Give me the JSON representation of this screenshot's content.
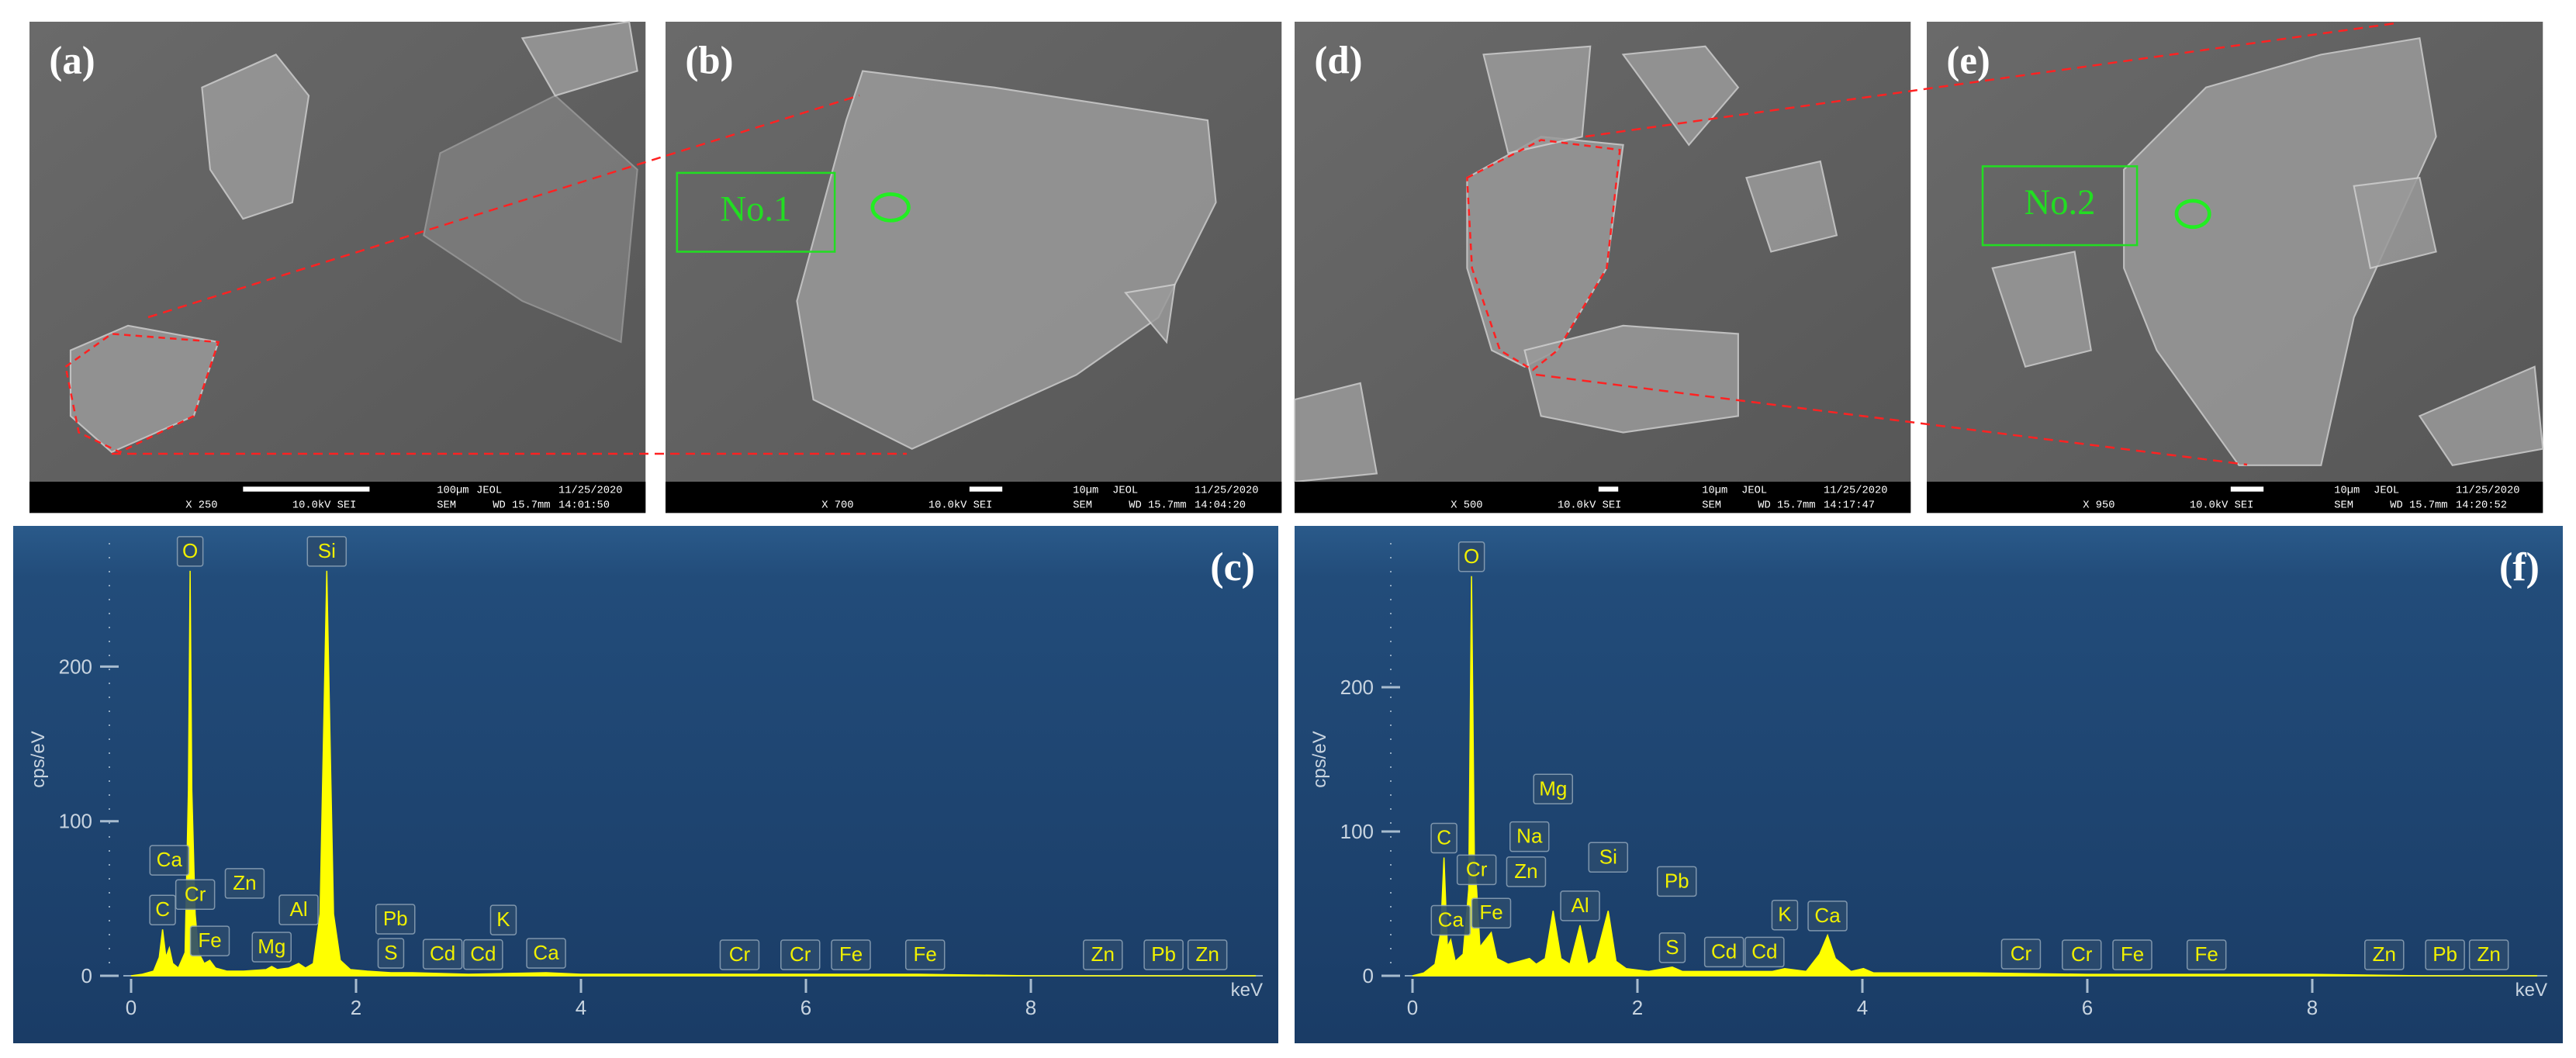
{
  "panels": [
    {
      "label": "(a)",
      "magnification": "X 250",
      "voltage": "10.0kV SEI",
      "scale": "100µm",
      "maker": "JEOL",
      "date": "11/25/2020",
      "mode": "SEM",
      "wd": "WD 15.7mm",
      "time": "14:01:50"
    },
    {
      "label": "(b)",
      "box": "No.1",
      "magnification": "X 700",
      "voltage": "10.0kV SEI",
      "scale": "10µm",
      "maker": "JEOL",
      "date": "11/25/2020",
      "mode": "SEM",
      "wd": "WD 15.7mm",
      "time": "14:04:20"
    },
    {
      "label": "(d)",
      "magnification": "X 500",
      "voltage": "10.0kV SEI",
      "scale": "10µm",
      "maker": "JEOL",
      "date": "11/25/2020",
      "mode": "SEM",
      "wd": "WD 15.7mm",
      "time": "14:17:47"
    },
    {
      "label": "(e)",
      "box": "No.2",
      "magnification": "X 950",
      "voltage": "10.0kV SEI",
      "scale": "10µm",
      "maker": "JEOL",
      "date": "11/25/2020",
      "mode": "SEM",
      "wd": "WD 15.7mm",
      "time": "14:20:52"
    }
  ],
  "chart_data": [
    {
      "type": "area",
      "title": "(c)",
      "x_label": "keV",
      "y_label": "cps/eV",
      "color": "#ffff00",
      "xlim": [
        0,
        10
      ],
      "ylim": [
        0,
        280
      ],
      "xticks": [
        0,
        2,
        4,
        6,
        8
      ],
      "yticks": [
        0,
        100,
        200
      ],
      "x": [
        0,
        0.1,
        0.2,
        0.25,
        0.28,
        0.31,
        0.34,
        0.37,
        0.42,
        0.48,
        0.51,
        0.525,
        0.54,
        0.57,
        0.6,
        0.65,
        0.7,
        0.75,
        0.85,
        1.0,
        1.2,
        1.25,
        1.3,
        1.4,
        1.49,
        1.55,
        1.62,
        1.68,
        1.71,
        1.74,
        1.77,
        1.8,
        1.86,
        1.95,
        2.1,
        2.31,
        2.5,
        3.0,
        3.69,
        4.0,
        5.0,
        6.0,
        7.0,
        8.0,
        9.0,
        10.0
      ],
      "values": [
        0,
        1,
        3,
        12,
        30,
        12,
        18,
        8,
        5,
        15,
        120,
        262,
        120,
        40,
        15,
        8,
        10,
        5,
        3,
        3,
        4,
        6,
        4,
        5,
        8,
        5,
        8,
        40,
        150,
        262,
        150,
        40,
        10,
        4,
        3,
        2,
        2,
        1,
        2,
        1,
        1,
        1,
        1,
        0,
        0,
        0
      ],
      "peaks": [
        {
          "label": "O",
          "x": 0.525
        },
        {
          "label": "Si",
          "x": 1.74
        },
        {
          "label": "C",
          "x": 0.28
        },
        {
          "label": "Ca",
          "x": 0.34
        },
        {
          "label": "Cr",
          "x": 0.57
        },
        {
          "label": "Fe",
          "x": 0.7
        },
        {
          "label": "Zn",
          "x": 1.01
        },
        {
          "label": "Mg",
          "x": 1.25
        },
        {
          "label": "Al",
          "x": 1.49
        },
        {
          "label": "S",
          "x": 2.31
        },
        {
          "label": "Pb",
          "x": 2.35
        },
        {
          "label": "Cd",
          "x": 2.77
        },
        {
          "label": "Cd",
          "x": 3.13
        },
        {
          "label": "K",
          "x": 3.31
        },
        {
          "label": "Ca",
          "x": 3.69
        },
        {
          "label": "Cr",
          "x": 5.41
        },
        {
          "label": "Cr",
          "x": 5.95
        },
        {
          "label": "Fe",
          "x": 6.4
        },
        {
          "label": "Fe",
          "x": 7.06
        },
        {
          "label": "Zn",
          "x": 8.64
        },
        {
          "label": "Pb",
          "x": 9.18
        },
        {
          "label": "Zn",
          "x": 9.57
        }
      ]
    },
    {
      "type": "area",
      "title": "(f)",
      "x_label": "keV",
      "y_label": "cps/eV",
      "color": "#ffff00",
      "xlim": [
        0,
        10
      ],
      "ylim": [
        0,
        300
      ],
      "xticks": [
        0,
        2,
        4,
        6,
        8
      ],
      "yticks": [
        0,
        100,
        200
      ],
      "x": [
        0,
        0.1,
        0.2,
        0.25,
        0.28,
        0.31,
        0.34,
        0.38,
        0.45,
        0.5,
        0.525,
        0.55,
        0.57,
        0.6,
        0.65,
        0.7,
        0.75,
        0.85,
        0.95,
        1.04,
        1.1,
        1.18,
        1.25,
        1.32,
        1.4,
        1.49,
        1.56,
        1.63,
        1.74,
        1.81,
        1.9,
        2.1,
        2.31,
        2.4,
        2.8,
        3.2,
        3.31,
        3.5,
        3.62,
        3.69,
        3.76,
        3.9,
        4.01,
        4.1,
        5,
        6,
        7,
        8,
        9,
        10
      ],
      "values": [
        0,
        2,
        8,
        30,
        82,
        20,
        25,
        10,
        15,
        60,
        277,
        80,
        60,
        20,
        25,
        30,
        12,
        8,
        10,
        12,
        8,
        12,
        45,
        12,
        8,
        35,
        8,
        12,
        45,
        10,
        5,
        3,
        6,
        3,
        3,
        3,
        5,
        3,
        15,
        28,
        12,
        3,
        5,
        2,
        2,
        1,
        1,
        1,
        0,
        0
      ],
      "peaks": [
        {
          "label": "O",
          "x": 0.525
        },
        {
          "label": "C",
          "x": 0.28
        },
        {
          "label": "Ca",
          "x": 0.34
        },
        {
          "label": "Cr",
          "x": 0.57
        },
        {
          "label": "Fe",
          "x": 0.7
        },
        {
          "label": "Zn",
          "x": 1.01
        },
        {
          "label": "Na",
          "x": 1.04
        },
        {
          "label": "Mg",
          "x": 1.25
        },
        {
          "label": "Al",
          "x": 1.49
        },
        {
          "label": "Si",
          "x": 1.74
        },
        {
          "label": "S",
          "x": 2.31
        },
        {
          "label": "Pb",
          "x": 2.35
        },
        {
          "label": "Cd",
          "x": 2.77
        },
        {
          "label": "Cd",
          "x": 3.13
        },
        {
          "label": "K",
          "x": 3.31
        },
        {
          "label": "Ca",
          "x": 3.69
        },
        {
          "label": "Cr",
          "x": 5.41
        },
        {
          "label": "Cr",
          "x": 5.95
        },
        {
          "label": "Fe",
          "x": 6.4
        },
        {
          "label": "Fe",
          "x": 7.06
        },
        {
          "label": "Zn",
          "x": 8.64
        },
        {
          "label": "Pb",
          "x": 9.18
        },
        {
          "label": "Zn",
          "x": 9.57
        }
      ]
    }
  ]
}
